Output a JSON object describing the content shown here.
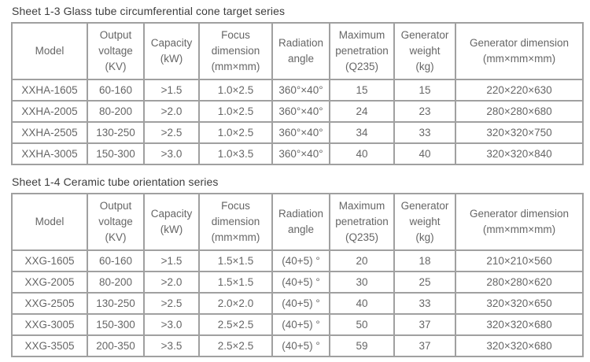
{
  "colors": {
    "background": "#ffffff",
    "border": "#a0a0a0",
    "cell_text": "#666666",
    "title_text": "#3d3d3d"
  },
  "tables": [
    {
      "title": "Sheet 1-3 Glass tube circumferential cone target series",
      "headers": [
        "Model",
        "Output\nvoltage\n(KV)",
        "Capacity\n(kW)",
        "Focus\ndimension\n(mm×mm)",
        "Radiation\nangle",
        "Maximum\npenetration\n(Q235)",
        "Generator\nweight\n(kg)",
        "Generator dimension\n(mm×mm×mm)"
      ],
      "rows": [
        [
          "XXHA-1605",
          "60-160",
          ">1.5",
          "1.0×2.5",
          "360°×40°",
          "15",
          "15",
          "220×220×630"
        ],
        [
          "XXHA-2005",
          "80-200",
          ">2.0",
          "1.0×2.5",
          "360°×40°",
          "24",
          "23",
          "280×280×680"
        ],
        [
          "XXHA-2505",
          "130-250",
          ">2.5",
          "1.0×2.5",
          "360°×40°",
          "34",
          "33",
          "320×320×750"
        ],
        [
          "XXHA-3005",
          "150-300",
          ">3.0",
          "1.0×3.5",
          "360°×40°",
          "40",
          "40",
          "320×320×840"
        ]
      ]
    },
    {
      "title": "Sheet 1-4 Ceramic tube orientation series",
      "headers": [
        "Model",
        "Output\nvoltage\n(KV)",
        "Capacity\n(kW)",
        "Focus\ndimension\n(mm×mm)",
        "Radiation\nangle",
        "Maximum\npenetration\n(Q235)",
        "Generator\nweight\n(kg)",
        "Generator dimension\n(mm×mm×mm)"
      ],
      "rows": [
        [
          "XXG-1605",
          "60-160",
          ">1.5",
          "1.5×1.5",
          "(40+5) °",
          "20",
          "18",
          "210×210×560"
        ],
        [
          "XXG-2005",
          "80-200",
          ">2.0",
          "1.5×1.5",
          "(40+5) °",
          "30",
          "25",
          "280×280×620"
        ],
        [
          "XXG-2505",
          "130-250",
          ">2.5",
          "2.0×2.0",
          "(40+5) °",
          "40",
          "33",
          "320×320×650"
        ],
        [
          "XXG-3005",
          "150-300",
          ">3.0",
          "2.5×2.5",
          "(40+5) °",
          "50",
          "37",
          "320×320×680"
        ],
        [
          "XXG-3505",
          "200-350",
          ">3.5",
          "2.5×2.5",
          "(40+5) °",
          "59",
          "37",
          "320×320×680"
        ]
      ]
    }
  ]
}
